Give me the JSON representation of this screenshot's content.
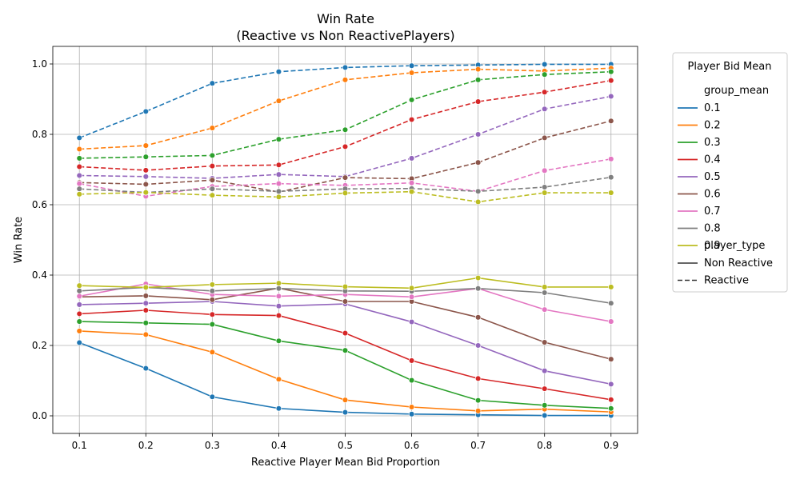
{
  "chart_data": {
    "type": "line",
    "title": "Win Rate",
    "subtitle": "(Reactive vs Non ReactivePlayers)",
    "xlabel": "Reactive Player Mean Bid Proportion",
    "ylabel": "Win Rate",
    "x": [
      0.1,
      0.2,
      0.3,
      0.4,
      0.5,
      0.6,
      0.7,
      0.8,
      0.9
    ],
    "xticks": [
      "0.1",
      "0.2",
      "0.3",
      "0.4",
      "0.5",
      "0.6",
      "0.7",
      "0.8",
      "0.9"
    ],
    "yticks": [
      "0.0",
      "0.2",
      "0.4",
      "0.6",
      "0.8",
      "1.0"
    ],
    "ylim": [
      -0.05,
      1.05
    ],
    "grid": true,
    "legend": {
      "title": "Player Bid Mean",
      "placement": "outside-right",
      "hue_title": "group_mean",
      "style_title": "player_type",
      "styles": [
        {
          "label": "Non Reactive",
          "dash": "solid"
        },
        {
          "label": "Reactive",
          "dash": "dashed"
        }
      ]
    },
    "groups": [
      {
        "name": "0.1",
        "color": "#1f77b4",
        "reactive": [
          0.79,
          0.865,
          0.945,
          0.978,
          0.99,
          0.995,
          0.997,
          0.999,
          0.999
        ],
        "non_reactive": [
          0.208,
          0.135,
          0.054,
          0.021,
          0.01,
          0.005,
          0.003,
          0.001,
          0.001
        ]
      },
      {
        "name": "0.2",
        "color": "#ff7f0e",
        "reactive": [
          0.758,
          0.768,
          0.818,
          0.895,
          0.955,
          0.975,
          0.985,
          0.98,
          0.988
        ],
        "non_reactive": [
          0.241,
          0.231,
          0.181,
          0.104,
          0.045,
          0.025,
          0.014,
          0.019,
          0.011
        ]
      },
      {
        "name": "0.3",
        "color": "#2ca02c",
        "reactive": [
          0.732,
          0.736,
          0.74,
          0.786,
          0.813,
          0.898,
          0.955,
          0.97,
          0.978
        ],
        "non_reactive": [
          0.268,
          0.264,
          0.26,
          0.213,
          0.186,
          0.101,
          0.044,
          0.03,
          0.021
        ]
      },
      {
        "name": "0.4",
        "color": "#d62728",
        "reactive": [
          0.708,
          0.698,
          0.71,
          0.713,
          0.765,
          0.842,
          0.893,
          0.92,
          0.953
        ],
        "non_reactive": [
          0.29,
          0.3,
          0.288,
          0.285,
          0.235,
          0.157,
          0.106,
          0.077,
          0.046
        ]
      },
      {
        "name": "0.5",
        "color": "#9467bd",
        "reactive": [
          0.683,
          0.68,
          0.675,
          0.686,
          0.68,
          0.732,
          0.8,
          0.872,
          0.908
        ],
        "non_reactive": [
          0.316,
          0.32,
          0.325,
          0.312,
          0.318,
          0.267,
          0.2,
          0.128,
          0.09
        ]
      },
      {
        "name": "0.6",
        "color": "#8c564b",
        "reactive": [
          0.663,
          0.658,
          0.67,
          0.636,
          0.677,
          0.674,
          0.72,
          0.79,
          0.838
        ],
        "non_reactive": [
          0.338,
          0.341,
          0.33,
          0.363,
          0.325,
          0.325,
          0.28,
          0.209,
          0.161
        ]
      },
      {
        "name": "0.7",
        "color": "#e377c2",
        "reactive": [
          0.66,
          0.624,
          0.652,
          0.66,
          0.655,
          0.662,
          0.638,
          0.697,
          0.73
        ],
        "non_reactive": [
          0.34,
          0.375,
          0.345,
          0.34,
          0.345,
          0.338,
          0.362,
          0.302,
          0.268
        ]
      },
      {
        "name": "0.8",
        "color": "#7f7f7f",
        "reactive": [
          0.645,
          0.635,
          0.645,
          0.638,
          0.645,
          0.646,
          0.638,
          0.65,
          0.678
        ],
        "non_reactive": [
          0.355,
          0.365,
          0.355,
          0.362,
          0.355,
          0.354,
          0.362,
          0.35,
          0.32
        ]
      },
      {
        "name": "0.9",
        "color": "#bcbd22",
        "reactive": [
          0.63,
          0.635,
          0.627,
          0.622,
          0.633,
          0.637,
          0.608,
          0.634,
          0.634
        ],
        "non_reactive": [
          0.37,
          0.365,
          0.373,
          0.377,
          0.367,
          0.363,
          0.392,
          0.366,
          0.366
        ]
      }
    ]
  }
}
